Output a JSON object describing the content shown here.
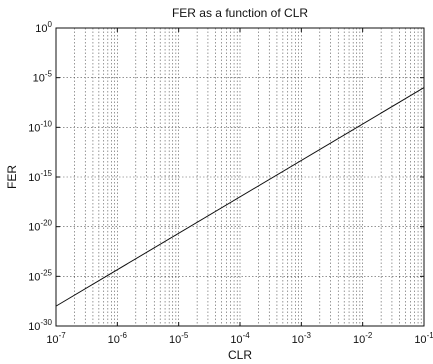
{
  "chart_data": {
    "type": "line",
    "title": "FER as a function of CLR",
    "xlabel": "CLR",
    "ylabel": "FER",
    "x_scale": "log",
    "y_scale": "log",
    "xlim": [
      1e-07,
      0.1
    ],
    "ylim": [
      1e-30,
      1
    ],
    "grid": true,
    "x_ticks": [
      1e-07,
      1e-06,
      1e-05,
      0.0001,
      0.001,
      0.01,
      0.1
    ],
    "x_tick_labels": [
      {
        "base": "10",
        "exp": "-7"
      },
      {
        "base": "10",
        "exp": "-6"
      },
      {
        "base": "10",
        "exp": "-5"
      },
      {
        "base": "10",
        "exp": "-4"
      },
      {
        "base": "10",
        "exp": "-3"
      },
      {
        "base": "10",
        "exp": "-2"
      },
      {
        "base": "10",
        "exp": "-1"
      }
    ],
    "y_ticks": [
      1e-30,
      1e-25,
      1e-20,
      1e-15,
      1e-10,
      1e-05,
      1
    ],
    "y_tick_labels": [
      {
        "base": "10",
        "exp": "-30"
      },
      {
        "base": "10",
        "exp": "-25"
      },
      {
        "base": "10",
        "exp": "-20"
      },
      {
        "base": "10",
        "exp": "-15"
      },
      {
        "base": "10",
        "exp": "-10"
      },
      {
        "base": "10",
        "exp": "-5"
      },
      {
        "base": "10",
        "exp": "0"
      }
    ],
    "series": [
      {
        "x": [
          1e-07,
          0.1
        ],
        "y": [
          1e-28,
          1e-06
        ]
      }
    ]
  }
}
